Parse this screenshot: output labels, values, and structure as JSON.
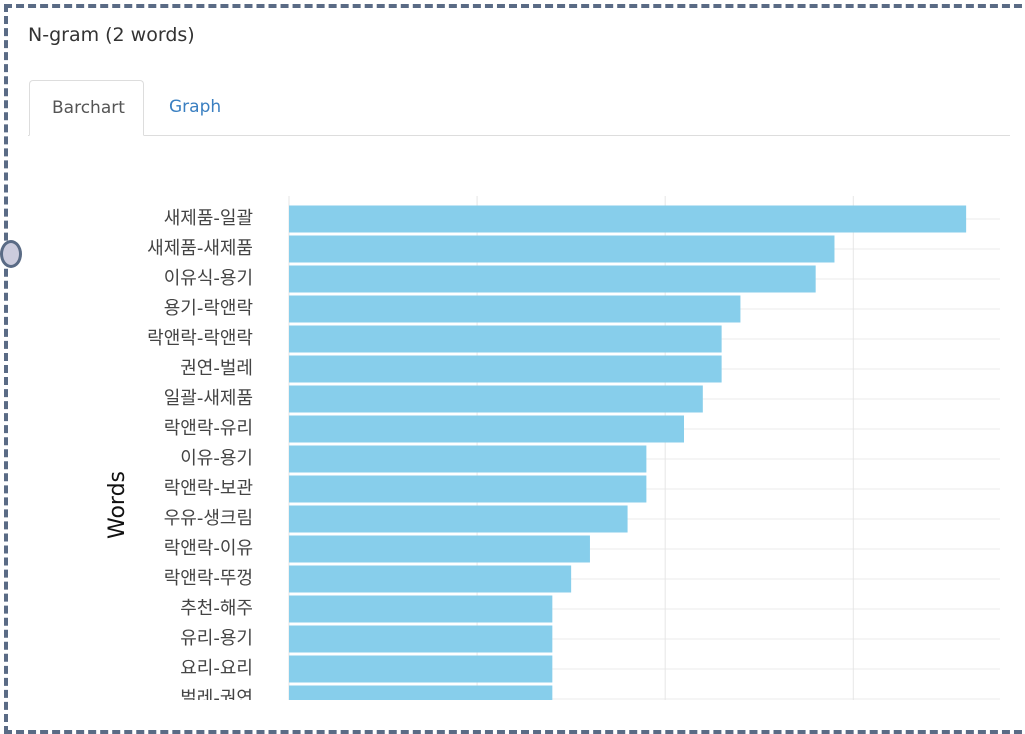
{
  "header": {
    "title": "N-gram (2 words)"
  },
  "tabs": [
    {
      "label": "Barchart",
      "active": true
    },
    {
      "label": "Graph",
      "active": false
    }
  ],
  "chart_data": {
    "type": "bar",
    "orientation": "horizontal",
    "ylabel": "Words",
    "color": "#87ceeb",
    "categories": [
      "새제품-일괄",
      "새제품-새제품",
      "이유식-용기",
      "용기-락앤락",
      "락앤락-락앤락",
      "권연-벌레",
      "일괄-새제품",
      "락앤락-유리",
      "이유-용기",
      "락앤락-보관",
      "우유-생크림",
      "락앤락-이유",
      "락앤락-뚜껑",
      "추천-해주",
      "유리-용기",
      "요리-요리",
      "벌레-권연"
    ],
    "values": [
      36,
      29,
      28,
      24,
      23,
      23,
      22,
      21,
      19,
      19,
      18,
      16,
      15,
      14,
      14,
      14,
      14
    ],
    "xlim": [
      0,
      37.8
    ],
    "xticks": [
      0,
      10,
      20,
      30
    ],
    "grid": true
  }
}
